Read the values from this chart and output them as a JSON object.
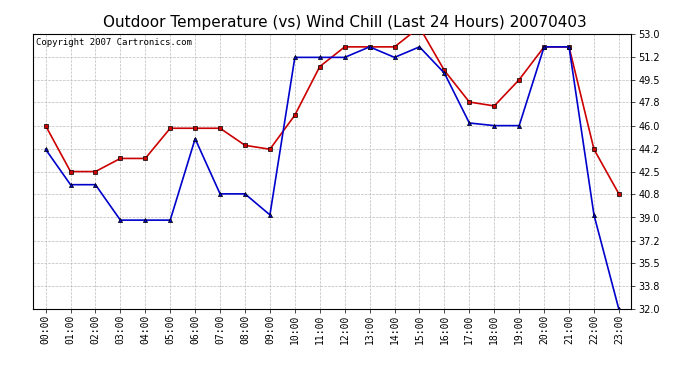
{
  "title": "Outdoor Temperature (vs) Wind Chill (Last 24 Hours) 20070403",
  "copyright": "Copyright 2007 Cartronics.com",
  "hours": [
    "00:00",
    "01:00",
    "02:00",
    "03:00",
    "04:00",
    "05:00",
    "06:00",
    "07:00",
    "08:00",
    "09:00",
    "10:00",
    "11:00",
    "12:00",
    "13:00",
    "14:00",
    "15:00",
    "16:00",
    "17:00",
    "18:00",
    "19:00",
    "20:00",
    "21:00",
    "22:00",
    "23:00"
  ],
  "outdoor_temp": [
    44.2,
    41.5,
    41.5,
    38.8,
    38.8,
    38.8,
    45.0,
    40.8,
    40.8,
    39.2,
    51.2,
    51.2,
    51.2,
    52.0,
    51.2,
    52.0,
    50.0,
    46.2,
    46.0,
    46.0,
    52.0,
    52.0,
    39.2,
    32.0
  ],
  "wind_chill": [
    46.0,
    42.5,
    42.5,
    43.5,
    43.5,
    45.8,
    45.8,
    45.8,
    44.5,
    44.2,
    46.8,
    50.5,
    52.0,
    52.0,
    52.0,
    53.5,
    50.2,
    47.8,
    47.5,
    49.5,
    52.0,
    52.0,
    44.2,
    40.8
  ],
  "temp_color": "#0000cc",
  "chill_color": "#cc0000",
  "ylim_min": 32.0,
  "ylim_max": 53.0,
  "yticks": [
    32.0,
    33.8,
    35.5,
    37.2,
    39.0,
    40.8,
    42.5,
    44.2,
    46.0,
    47.8,
    49.5,
    51.2,
    53.0
  ],
  "bg_color": "#ffffff",
  "grid_color": "#bbbbbb",
  "title_fontsize": 11,
  "tick_fontsize": 7,
  "copyright_fontsize": 6.5
}
